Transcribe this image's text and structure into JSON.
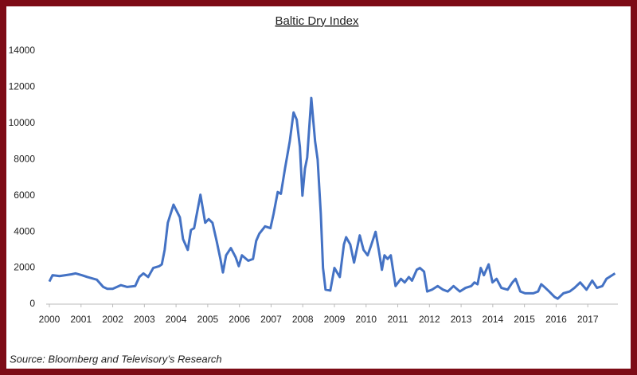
{
  "chart_data": {
    "type": "line",
    "title": "Baltic Dry Index",
    "source": "Source: Bloomberg and Televisory’s Research",
    "x": [
      2000.0,
      2000.1,
      2000.32,
      2000.7,
      2000.83,
      2001.03,
      2001.2,
      2001.4,
      2001.5,
      2001.7,
      2001.83,
      2002.0,
      2002.26,
      2002.46,
      2002.71,
      2002.84,
      2002.97,
      2003.12,
      2003.28,
      2003.47,
      2003.55,
      2003.64,
      2003.74,
      2003.92,
      2004.12,
      2004.22,
      2004.37,
      2004.47,
      2004.57,
      2004.77,
      2004.92,
      2005.03,
      2005.15,
      2005.28,
      2005.4,
      2005.48,
      2005.58,
      2005.73,
      2005.88,
      2005.98,
      2006.08,
      2006.28,
      2006.43,
      2006.53,
      2006.63,
      2006.81,
      2006.98,
      2007.08,
      2007.21,
      2007.31,
      2007.44,
      2007.59,
      2007.71,
      2007.81,
      2007.91,
      2007.99,
      2008.07,
      2008.14,
      2008.27,
      2008.39,
      2008.47,
      2008.57,
      2008.64,
      2008.72,
      2008.87,
      2009.0,
      2009.17,
      2009.3,
      2009.37,
      2009.5,
      2009.62,
      2009.8,
      2009.92,
      2010.05,
      2010.15,
      2010.3,
      2010.4,
      2010.5,
      2010.58,
      2010.68,
      2010.78,
      2010.85,
      2010.93,
      2011.1,
      2011.22,
      2011.35,
      2011.45,
      2011.6,
      2011.7,
      2011.83,
      2011.93,
      2012.08,
      2012.26,
      2012.43,
      2012.58,
      2012.76,
      2012.96,
      2013.14,
      2013.32,
      2013.42,
      2013.52,
      2013.62,
      2013.72,
      2013.87,
      2013.99,
      2014.12,
      2014.27,
      2014.47,
      2014.62,
      2014.72,
      2014.87,
      2015.02,
      2015.28,
      2015.43,
      2015.53,
      2015.66,
      2015.78,
      2015.95,
      2016.05,
      2016.23,
      2016.43,
      2016.58,
      2016.76,
      2016.96,
      2017.14,
      2017.29,
      2017.46,
      2017.59,
      2017.86
    ],
    "values": [
      1250,
      1600,
      1550,
      1650,
      1700,
      1600,
      1500,
      1400,
      1350,
      950,
      850,
      850,
      1050,
      950,
      1000,
      1500,
      1700,
      1500,
      2000,
      2100,
      2200,
      3000,
      4500,
      5500,
      4800,
      3600,
      3000,
      4100,
      4200,
      6050,
      4500,
      4700,
      4500,
      3500,
      2500,
      1750,
      2700,
      3100,
      2600,
      2100,
      2700,
      2400,
      2500,
      3500,
      3900,
      4300,
      4200,
      5000,
      6200,
      6100,
      7500,
      9000,
      10600,
      10200,
      8700,
      6000,
      7500,
      8100,
      11400,
      9000,
      8000,
      5000,
      2000,
      800,
      750,
      2000,
      1500,
      3300,
      3700,
      3300,
      2300,
      3800,
      3000,
      2700,
      3200,
      4000,
      3000,
      1900,
      2700,
      2500,
      2700,
      1900,
      1000,
      1400,
      1200,
      1500,
      1300,
      1900,
      2000,
      1800,
      700,
      800,
      1000,
      800,
      700,
      1000,
      700,
      900,
      1000,
      1200,
      1100,
      2000,
      1600,
      2200,
      1200,
      1400,
      900,
      800,
      1200,
      1400,
      700,
      600,
      600,
      700,
      1100,
      900,
      700,
      400,
      300,
      600,
      700,
      900,
      1200,
      800,
      1300,
      900,
      1000,
      1400,
      1700
    ],
    "color": "#4472c4",
    "xlim": [
      2000,
      2017.9
    ],
    "xticks": [
      2000,
      2001,
      2002,
      2003,
      2004,
      2005,
      2006,
      2007,
      2008,
      2009,
      2010,
      2011,
      2012,
      2013,
      2014,
      2015,
      2016,
      2017
    ],
    "ylim": [
      0,
      14000
    ],
    "yticks": [
      0,
      2000,
      4000,
      6000,
      8000,
      10000,
      12000,
      14000
    ],
    "grid": false
  }
}
